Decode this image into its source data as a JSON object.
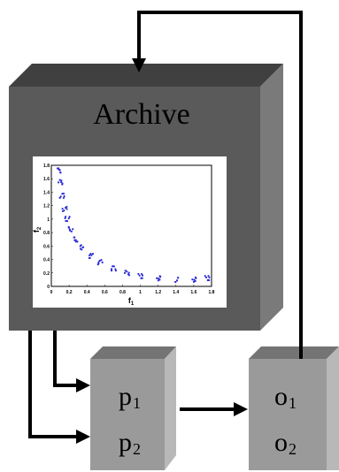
{
  "archive": {
    "title": "Archive"
  },
  "parents": {
    "labels": [
      {
        "base": "p",
        "sub": "1"
      },
      {
        "base": "p",
        "sub": "2"
      }
    ]
  },
  "offspring": {
    "labels": [
      {
        "base": "o",
        "sub": "1"
      },
      {
        "base": "o",
        "sub": "2"
      }
    ]
  },
  "colors": {
    "box_front": "#5a5a5a",
    "box_top": "#404040",
    "box_side": "#7a7a7a",
    "small_front": "#9a9a9a",
    "small_top": "#747474",
    "small_side": "#b8b8b8",
    "arrow": "#000000",
    "points": "#2b2bd6"
  },
  "chart_data": {
    "type": "scatter",
    "xlabel": "f1",
    "ylabel": "f2",
    "xlim": [
      0,
      1.8
    ],
    "ylim": [
      0,
      1.8
    ],
    "x_ticks": [
      "0",
      "0.2",
      "0.4",
      "0.6",
      "0.8",
      "1",
      "1.2",
      "1.4",
      "1.6",
      "1.8"
    ],
    "y_ticks": [
      "0",
      "0.2",
      "0.4",
      "0.6",
      "0.8",
      "1",
      "1.2",
      "1.4",
      "1.6",
      "1.8"
    ],
    "series": [
      {
        "points": [
          [
            0.08,
            1.72
          ],
          [
            0.1,
            1.55
          ],
          [
            0.12,
            1.35
          ],
          [
            0.15,
            1.15
          ],
          [
            0.18,
            1.0
          ],
          [
            0.22,
            0.85
          ],
          [
            0.28,
            0.7
          ],
          [
            0.35,
            0.58
          ],
          [
            0.45,
            0.45
          ],
          [
            0.55,
            0.36
          ],
          [
            0.7,
            0.27
          ],
          [
            0.85,
            0.2
          ],
          [
            1.0,
            0.15
          ],
          [
            1.2,
            0.12
          ],
          [
            1.4,
            0.1
          ],
          [
            1.6,
            0.1
          ],
          [
            1.75,
            0.12
          ]
        ]
      }
    ]
  }
}
